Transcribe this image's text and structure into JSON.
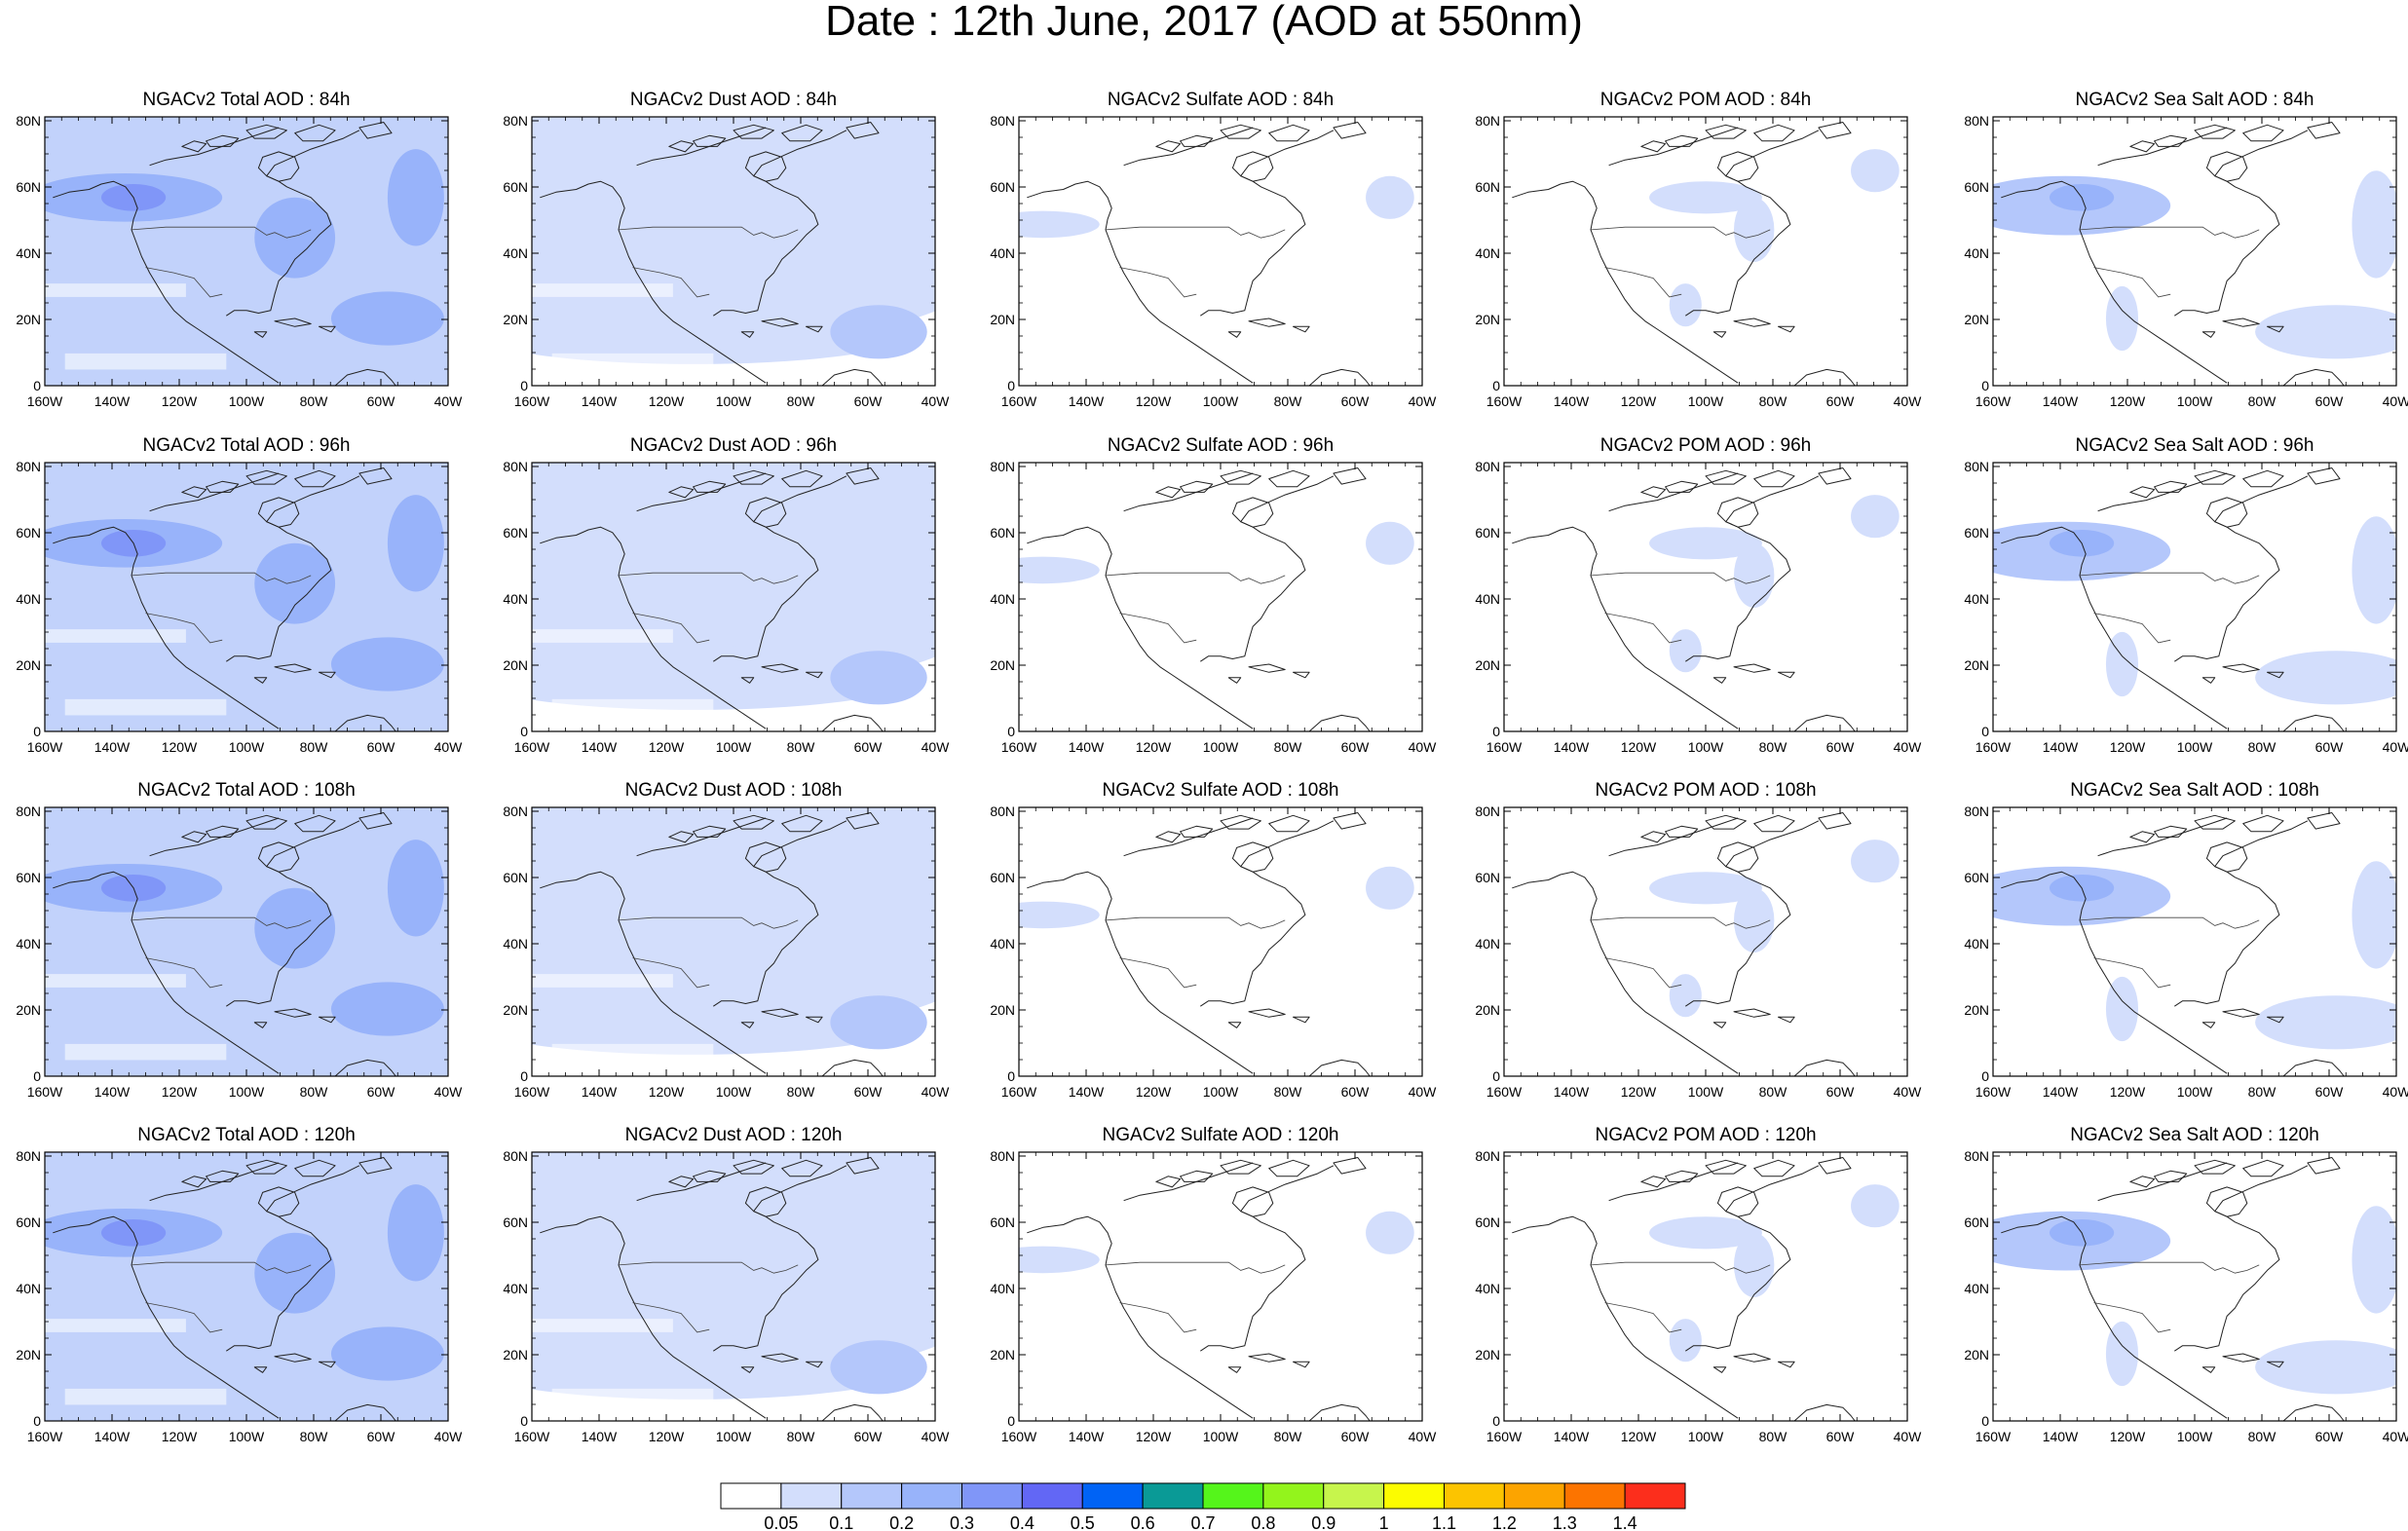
{
  "title": "Date : 12th June, 2017 (AOD at 550nm)",
  "panel_titles": [
    [
      "NGACv2 Total AOD : 84h",
      "NGACv2 Dust AOD : 84h",
      "NGACv2 Sulfate AOD : 84h",
      "NGACv2 POM AOD : 84h",
      "NGACv2 Sea Salt AOD : 84h"
    ],
    [
      "NGACv2 Total AOD : 96h",
      "NGACv2 Dust AOD : 96h",
      "NGACv2 Sulfate AOD : 96h",
      "NGACv2 POM AOD : 96h",
      "NGACv2 Sea Salt AOD : 96h"
    ],
    [
      "NGACv2 Total AOD : 108h",
      "NGACv2 Dust AOD : 108h",
      "NGACv2 Sulfate AOD : 108h",
      "NGACv2 POM AOD : 108h",
      "NGACv2 Sea Salt AOD : 108h"
    ],
    [
      "NGACv2 Total AOD : 120h",
      "NGACv2 Dust AOD : 120h",
      "NGACv2 Sulfate AOD : 120h",
      "NGACv2 POM AOD : 120h",
      "NGACv2 Sea Salt  AOD : 120h"
    ]
  ],
  "lat_ticks": [
    "0",
    "20N",
    "40N",
    "60N",
    "80N"
  ],
  "lon_ticks": [
    "160W",
    "140W",
    "120W",
    "100W",
    "80W",
    "60W",
    "40W"
  ],
  "colorbar": {
    "colors": [
      "#ffffff",
      "#d3defc",
      "#b4c7fb",
      "#98b3fa",
      "#8096f8",
      "#6267f5",
      "#0063f5",
      "#0a9a96",
      "#55f51b",
      "#93f41c",
      "#c7f54c",
      "#fcfc00",
      "#fcc400",
      "#fca400",
      "#fc7400",
      "#fc2e1c"
    ],
    "labels": [
      "0.05",
      "0.1",
      "0.2",
      "0.3",
      "0.4",
      "0.5",
      "0.6",
      "0.7",
      "0.8",
      "0.9",
      "1",
      "1.1",
      "1.2",
      "1.3",
      "1.4"
    ]
  },
  "map_fill": {
    "total": {
      "base": "#c2d2fb",
      "strong": "#98b3fa",
      "peak": "#8096f8"
    },
    "dust": {
      "base": "#d3defc",
      "strong": "#b4c7fb"
    },
    "sulfate": {
      "base": "#d3defc"
    },
    "pom": {
      "base": "#d3defc"
    },
    "seasalt": {
      "base": "#d3defc",
      "strong": "#b4c7fb",
      "peak": "#98b3fa"
    }
  }
}
